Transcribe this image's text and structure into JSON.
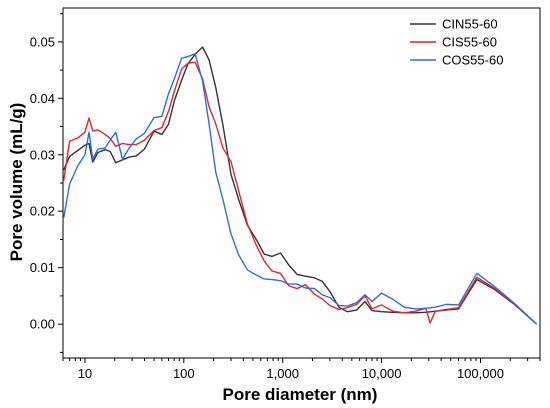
{
  "chart_data": {
    "type": "line",
    "xlabel": "Pore diameter (nm)",
    "ylabel": "Pore volume (mL/g)",
    "xscale": "log",
    "xlim": [
      6,
      400000
    ],
    "ylim": [
      -0.006,
      0.056
    ],
    "grid": false,
    "legend_position": "top-right",
    "x_ticks": [
      {
        "value": 10,
        "label": "10"
      },
      {
        "value": 100,
        "label": "100"
      },
      {
        "value": 1000,
        "label": "1,000"
      },
      {
        "value": 10000,
        "label": "10,000"
      },
      {
        "value": 100000,
        "label": "100,000"
      }
    ],
    "y_ticks": [
      {
        "value": 0.0,
        "label": "0.00"
      },
      {
        "value": 0.01,
        "label": "0.01"
      },
      {
        "value": 0.02,
        "label": "0.02"
      },
      {
        "value": 0.03,
        "label": "0.03"
      },
      {
        "value": 0.04,
        "label": "0.04"
      },
      {
        "value": 0.05,
        "label": "0.05"
      }
    ],
    "series": [
      {
        "name": "CIN55-60",
        "color": "#333333",
        "points": [
          [
            6.1,
            0.0273
          ],
          [
            7,
            0.0297
          ],
          [
            8.5,
            0.0308
          ],
          [
            10,
            0.0317
          ],
          [
            11,
            0.032
          ],
          [
            12,
            0.0287
          ],
          [
            13.5,
            0.0304
          ],
          [
            16,
            0.0309
          ],
          [
            18,
            0.0306
          ],
          [
            20.5,
            0.0286
          ],
          [
            24,
            0.0291
          ],
          [
            28,
            0.0296
          ],
          [
            33,
            0.0298
          ],
          [
            40,
            0.031
          ],
          [
            50,
            0.0342
          ],
          [
            60,
            0.0336
          ],
          [
            70,
            0.0354
          ],
          [
            80,
            0.0395
          ],
          [
            95,
            0.0432
          ],
          [
            110,
            0.0461
          ],
          [
            130,
            0.0478
          ],
          [
            155,
            0.0491
          ],
          [
            180,
            0.0468
          ],
          [
            210,
            0.042
          ],
          [
            250,
            0.035
          ],
          [
            300,
            0.0265
          ],
          [
            360,
            0.022
          ],
          [
            440,
            0.0175
          ],
          [
            540,
            0.015
          ],
          [
            650,
            0.0124
          ],
          [
            780,
            0.012
          ],
          [
            950,
            0.0126
          ],
          [
            1150,
            0.0105
          ],
          [
            1400,
            0.0088
          ],
          [
            1700,
            0.0085
          ],
          [
            2100,
            0.0082
          ],
          [
            2500,
            0.0076
          ],
          [
            3000,
            0.0058
          ],
          [
            3700,
            0.003
          ],
          [
            4500,
            0.0022
          ],
          [
            5600,
            0.0025
          ],
          [
            6800,
            0.004
          ],
          [
            8000,
            0.0024
          ],
          [
            10000,
            0.0022
          ],
          [
            13000,
            0.0021
          ],
          [
            17000,
            0.002
          ],
          [
            22000,
            0.002
          ],
          [
            28000,
            0.0021
          ],
          [
            35000,
            0.0023
          ],
          [
            45000,
            0.0025
          ],
          [
            60000,
            0.0027
          ],
          [
            92000,
            0.0079
          ],
          [
            140000,
            0.0061
          ],
          [
            220000,
            0.0035
          ],
          [
            370000,
            0.0
          ]
        ]
      },
      {
        "name": "CIS55-60",
        "color": "#e02828",
        "points": [
          [
            6.1,
            0.0254
          ],
          [
            7,
            0.0324
          ],
          [
            8.5,
            0.033
          ],
          [
            10,
            0.034
          ],
          [
            11,
            0.0365
          ],
          [
            12,
            0.0342
          ],
          [
            13.5,
            0.0344
          ],
          [
            16,
            0.0336
          ],
          [
            18,
            0.0329
          ],
          [
            20.5,
            0.0315
          ],
          [
            24,
            0.032
          ],
          [
            28,
            0.0318
          ],
          [
            33,
            0.0318
          ],
          [
            40,
            0.0326
          ],
          [
            50,
            0.0343
          ],
          [
            60,
            0.0348
          ],
          [
            70,
            0.0377
          ],
          [
            80,
            0.0412
          ],
          [
            95,
            0.0452
          ],
          [
            110,
            0.0462
          ],
          [
            130,
            0.0464
          ],
          [
            155,
            0.0434
          ],
          [
            180,
            0.0385
          ],
          [
            210,
            0.0355
          ],
          [
            250,
            0.0311
          ],
          [
            300,
            0.0288
          ],
          [
            360,
            0.0235
          ],
          [
            440,
            0.0177
          ],
          [
            540,
            0.014
          ],
          [
            650,
            0.0112
          ],
          [
            780,
            0.0094
          ],
          [
            950,
            0.009
          ],
          [
            1150,
            0.0068
          ],
          [
            1400,
            0.0063
          ],
          [
            1700,
            0.007
          ],
          [
            2100,
            0.0053
          ],
          [
            2500,
            0.0045
          ],
          [
            3000,
            0.0033
          ],
          [
            3700,
            0.0026
          ],
          [
            4500,
            0.0029
          ],
          [
            5600,
            0.0035
          ],
          [
            6800,
            0.005
          ],
          [
            8000,
            0.0027
          ],
          [
            10000,
            0.0034
          ],
          [
            13000,
            0.0023
          ],
          [
            17000,
            0.002
          ],
          [
            22000,
            0.0023
          ],
          [
            28000,
            0.0028
          ],
          [
            31000,
            0.0002
          ],
          [
            35000,
            0.0023
          ],
          [
            45000,
            0.0026
          ],
          [
            60000,
            0.0029
          ],
          [
            92000,
            0.0083
          ],
          [
            140000,
            0.0063
          ],
          [
            220000,
            0.0036
          ],
          [
            370000,
            0.0
          ]
        ]
      },
      {
        "name": "COS55-60",
        "color": "#2f6ed6",
        "points": [
          [
            6.1,
            0.0188
          ],
          [
            7,
            0.0248
          ],
          [
            8.5,
            0.0281
          ],
          [
            10,
            0.03
          ],
          [
            11,
            0.034
          ],
          [
            12,
            0.0292
          ],
          [
            13.5,
            0.031
          ],
          [
            16,
            0.0312
          ],
          [
            18,
            0.0326
          ],
          [
            20.5,
            0.034
          ],
          [
            24,
            0.0292
          ],
          [
            28,
            0.0312
          ],
          [
            33,
            0.0328
          ],
          [
            40,
            0.0338
          ],
          [
            50,
            0.0366
          ],
          [
            60,
            0.0368
          ],
          [
            70,
            0.0408
          ],
          [
            80,
            0.0434
          ],
          [
            95,
            0.0471
          ],
          [
            110,
            0.0474
          ],
          [
            130,
            0.0479
          ],
          [
            155,
            0.043
          ],
          [
            180,
            0.0355
          ],
          [
            210,
            0.027
          ],
          [
            250,
            0.0219
          ],
          [
            300,
            0.016
          ],
          [
            360,
            0.0122
          ],
          [
            440,
            0.0096
          ],
          [
            540,
            0.0087
          ],
          [
            650,
            0.008
          ],
          [
            780,
            0.0079
          ],
          [
            950,
            0.0077
          ],
          [
            1150,
            0.0071
          ],
          [
            1400,
            0.0071
          ],
          [
            1700,
            0.0064
          ],
          [
            2100,
            0.0063
          ],
          [
            2500,
            0.0052
          ],
          [
            3000,
            0.0047
          ],
          [
            3700,
            0.0033
          ],
          [
            4500,
            0.0032
          ],
          [
            5600,
            0.0038
          ],
          [
            6800,
            0.0052
          ],
          [
            8000,
            0.004
          ],
          [
            10000,
            0.0055
          ],
          [
            13000,
            0.0044
          ],
          [
            17000,
            0.003
          ],
          [
            22000,
            0.0027
          ],
          [
            28000,
            0.0028
          ],
          [
            35000,
            0.003
          ],
          [
            45000,
            0.0035
          ],
          [
            60000,
            0.0034
          ],
          [
            92000,
            0.009
          ],
          [
            140000,
            0.0066
          ],
          [
            220000,
            0.0037
          ],
          [
            370000,
            0.0
          ]
        ]
      }
    ]
  }
}
